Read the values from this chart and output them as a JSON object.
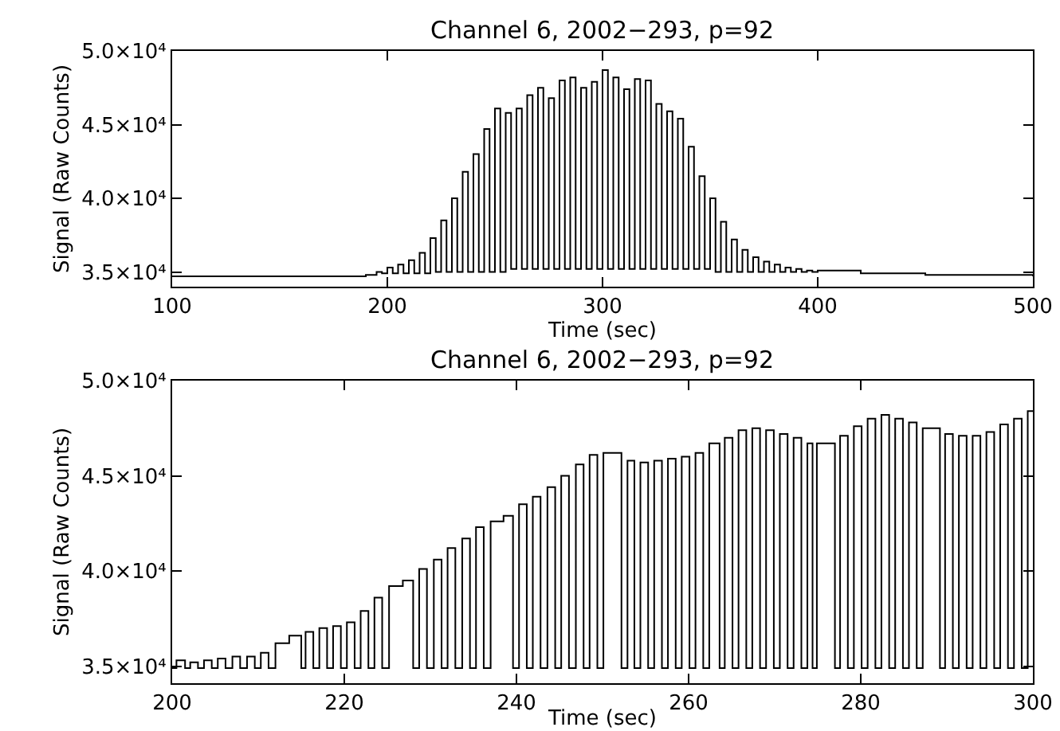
{
  "chart_data": [
    {
      "type": "step",
      "title": "Channel 6, 2002−293, p=92",
      "xlabel": "Time (sec)",
      "ylabel": "Signal (Raw Counts)",
      "x": [
        100,
        180,
        190,
        195,
        197.5,
        200,
        202.5,
        205,
        207.5,
        210,
        212.5,
        215,
        217.5,
        220,
        222.5,
        225,
        227.5,
        230,
        232.5,
        235,
        237.5,
        240,
        242.5,
        245,
        247.5,
        250,
        252.5,
        255,
        257.5,
        260,
        262.5,
        265,
        267.5,
        270,
        272.5,
        275,
        277.5,
        280,
        282.5,
        285,
        287.5,
        290,
        292.5,
        295,
        297.5,
        300,
        302.5,
        305,
        307.5,
        310,
        312.5,
        315,
        317.5,
        320,
        322.5,
        325,
        327.5,
        330,
        332.5,
        335,
        337.5,
        340,
        342.5,
        345,
        347.5,
        350,
        352.5,
        355,
        357.5,
        360,
        362.5,
        365,
        367.5,
        370,
        372.5,
        375,
        377.5,
        380,
        382.5,
        385,
        387.5,
        390,
        392.5,
        395,
        397.5,
        400,
        420,
        450,
        500
      ],
      "series": [
        {
          "color": "#000000",
          "values": [
            34700,
            34700,
            34800,
            35000,
            34900,
            35300,
            34900,
            35500,
            34900,
            35800,
            34900,
            36300,
            34900,
            37300,
            35000,
            38500,
            35000,
            40000,
            35000,
            41800,
            35000,
            43000,
            35000,
            44700,
            35000,
            46100,
            35000,
            45800,
            35200,
            46100,
            35200,
            47000,
            35200,
            47500,
            35200,
            46800,
            35200,
            48000,
            35200,
            48200,
            35200,
            47500,
            35200,
            47900,
            35200,
            48700,
            35200,
            48200,
            35200,
            47400,
            35200,
            48100,
            35200,
            48000,
            35200,
            46400,
            35200,
            45900,
            35200,
            45400,
            35200,
            43500,
            35200,
            41500,
            35200,
            40000,
            35000,
            38400,
            35000,
            37200,
            35000,
            36500,
            35000,
            36000,
            35000,
            35700,
            35000,
            35500,
            35000,
            35300,
            35000,
            35200,
            35000,
            35100,
            35000,
            35100,
            34900,
            34800,
            34700
          ]
        }
      ],
      "xlim": [
        100,
        500
      ],
      "xticks": [
        100,
        200,
        300,
        400,
        500
      ],
      "ylim": [
        34000,
        50000
      ],
      "yticks": [
        {
          "value": 35000,
          "label": "3.5×10⁴"
        },
        {
          "value": 40000,
          "label": "4.0×10⁴"
        },
        {
          "value": 45000,
          "label": "4.5×10⁴"
        },
        {
          "value": 50000,
          "label": "5.0×10⁴"
        }
      ]
    },
    {
      "type": "step",
      "title": "Channel 6, 2002−293, p=92",
      "xlabel": "Time (sec)",
      "ylabel": "Signal (Raw Counts)",
      "x": [
        200,
        200.5,
        201.5,
        202.1,
        203.0,
        203.7,
        204.6,
        205.3,
        206.2,
        207.0,
        207.9,
        208.7,
        209.6,
        210.3,
        211.2,
        212.0,
        213.6,
        215.0,
        215.5,
        216.4,
        217.1,
        218.0,
        218.7,
        219.6,
        220.3,
        221.2,
        221.9,
        222.8,
        223.5,
        224.4,
        225.2,
        226.8,
        228.0,
        228.7,
        229.6,
        230.4,
        231.3,
        232.0,
        232.9,
        233.7,
        234.6,
        235.3,
        236.2,
        237.0,
        238.5,
        239.6,
        240.3,
        241.2,
        241.9,
        242.8,
        243.6,
        244.5,
        245.2,
        246.1,
        246.9,
        247.8,
        248.5,
        249.4,
        250.1,
        252.2,
        252.9,
        253.7,
        254.4,
        255.3,
        256.0,
        256.9,
        257.6,
        258.5,
        259.2,
        260.1,
        260.8,
        261.7,
        262.4,
        263.6,
        264.2,
        265.1,
        265.8,
        266.7,
        267.4,
        268.3,
        269.0,
        269.9,
        270.6,
        271.5,
        272.2,
        273.1,
        273.8,
        274.4,
        274.9,
        277.0,
        277.6,
        278.5,
        279.2,
        280.1,
        280.8,
        281.7,
        282.4,
        283.3,
        284.0,
        284.9,
        285.6,
        286.5,
        287.2,
        289.2,
        289.8,
        290.7,
        291.4,
        292.3,
        293.0,
        293.9,
        294.6,
        295.5,
        296.2,
        297.1,
        297.8,
        298.7,
        299.4,
        300
      ],
      "series": [
        {
          "color": "#000000",
          "values": [
            34900,
            35300,
            34900,
            35200,
            34900,
            35300,
            34900,
            35400,
            34900,
            35500,
            34900,
            35500,
            34900,
            35700,
            34900,
            36200,
            36600,
            34900,
            36800,
            34900,
            37000,
            34900,
            37100,
            34900,
            37300,
            34900,
            37900,
            34900,
            38600,
            34900,
            39200,
            39500,
            34900,
            40100,
            34900,
            40600,
            34900,
            41200,
            34900,
            41700,
            34900,
            42300,
            34900,
            42600,
            42900,
            34900,
            43500,
            34900,
            43900,
            34900,
            44400,
            34900,
            45000,
            34900,
            45600,
            34900,
            46100,
            34900,
            46200,
            34900,
            45800,
            34900,
            45700,
            34900,
            45800,
            34900,
            45900,
            34900,
            46000,
            34900,
            46200,
            34900,
            46700,
            34900,
            47000,
            34900,
            47400,
            34900,
            47500,
            34900,
            47400,
            34900,
            47200,
            34900,
            47000,
            34900,
            46700,
            34900,
            46700,
            34900,
            47100,
            34900,
            47600,
            34900,
            48000,
            34900,
            48200,
            34900,
            48000,
            34900,
            47800,
            34900,
            47500,
            34900,
            47200,
            34900,
            47100,
            34900,
            47100,
            34900,
            47300,
            34900,
            47700,
            34900,
            48000,
            34900,
            48400,
            48400
          ]
        }
      ],
      "xlim": [
        200,
        300
      ],
      "xticks": [
        200,
        220,
        240,
        260,
        280,
        300
      ],
      "ylim": [
        34100,
        50000
      ],
      "yticks": [
        {
          "value": 35000,
          "label": "3.5×10⁴"
        },
        {
          "value": 40000,
          "label": "4.0×10⁴"
        },
        {
          "value": 45000,
          "label": "4.5×10⁴"
        },
        {
          "value": 50000,
          "label": "5.0×10⁴"
        }
      ]
    }
  ]
}
